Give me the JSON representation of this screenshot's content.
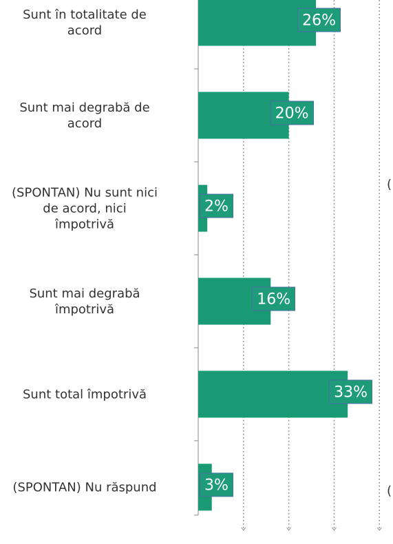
{
  "chart_data": {
    "type": "bar",
    "orientation": "horizontal",
    "categories": [
      "Sunt în totalitate de\nacord",
      "Sunt mai degrabă de\nacord",
      "(SPONTAN) Nu sunt nici\nde acord, nici\nîmpotrivă",
      "Sunt mai degrabă\nîmpotrivă",
      "Sunt total împotrivă",
      "(SPONTAN) Nu răspund"
    ],
    "values": [
      26,
      20,
      2,
      16,
      33,
      3
    ],
    "value_labels": [
      "26%",
      "20%",
      "2%",
      "16%",
      "33%",
      "3%"
    ],
    "color": "#1a9a74",
    "xlim": [
      0,
      43
    ],
    "xticks": [
      10,
      20,
      30,
      40
    ],
    "grid": true,
    "annotations": [
      "(",
      "("
    ]
  }
}
